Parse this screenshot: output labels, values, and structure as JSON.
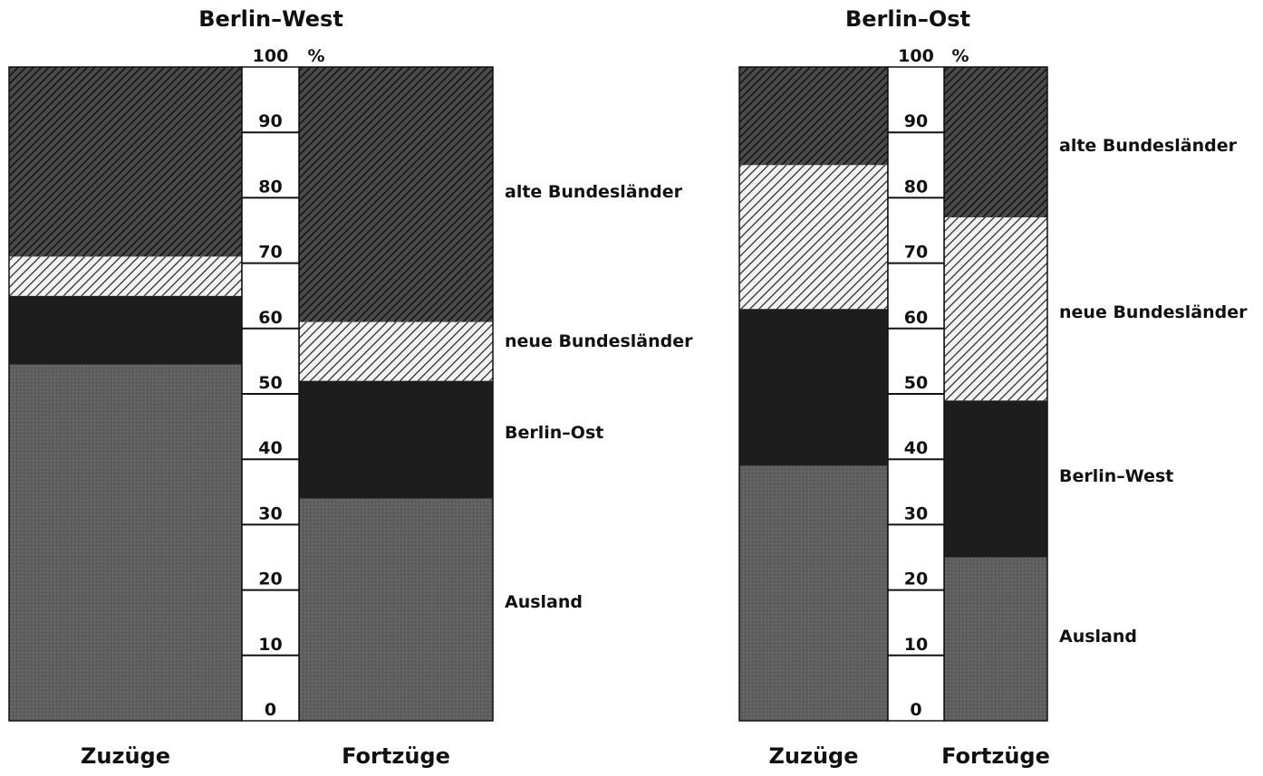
{
  "chart_data": [
    {
      "type": "bar",
      "stacked": true,
      "percent": true,
      "title": "Berlin–West",
      "axis_unit": "%",
      "ylim": [
        0,
        100
      ],
      "yticks": [
        "0",
        "10",
        "20",
        "30",
        "40",
        "50",
        "60",
        "70",
        "80",
        "90",
        "100"
      ],
      "categories": [
        "Zuzüge",
        "Fortzüge"
      ],
      "series": [
        {
          "name": "Ausland",
          "values": [
            54.5,
            34
          ]
        },
        {
          "name": "Berlin–Ost",
          "values": [
            10.5,
            18
          ]
        },
        {
          "name": "neue Bundesländer",
          "values": [
            6,
            9
          ]
        },
        {
          "name": "alte Bundesländer",
          "values": [
            29,
            39
          ]
        }
      ]
    },
    {
      "type": "bar",
      "stacked": true,
      "percent": true,
      "title": "Berlin–Ost",
      "axis_unit": "%",
      "ylim": [
        0,
        100
      ],
      "yticks": [
        "0",
        "10",
        "20",
        "30",
        "40",
        "50",
        "60",
        "70",
        "80",
        "90",
        "100"
      ],
      "categories": [
        "Zuzüge",
        "Fortzüge"
      ],
      "series": [
        {
          "name": "Ausland",
          "values": [
            39,
            25
          ]
        },
        {
          "name": "Berlin–West",
          "values": [
            24,
            24
          ]
        },
        {
          "name": "neue Bundesländer",
          "values": [
            22,
            28
          ]
        },
        {
          "name": "alte Bundesländer",
          "values": [
            15,
            23
          ]
        }
      ]
    }
  ]
}
